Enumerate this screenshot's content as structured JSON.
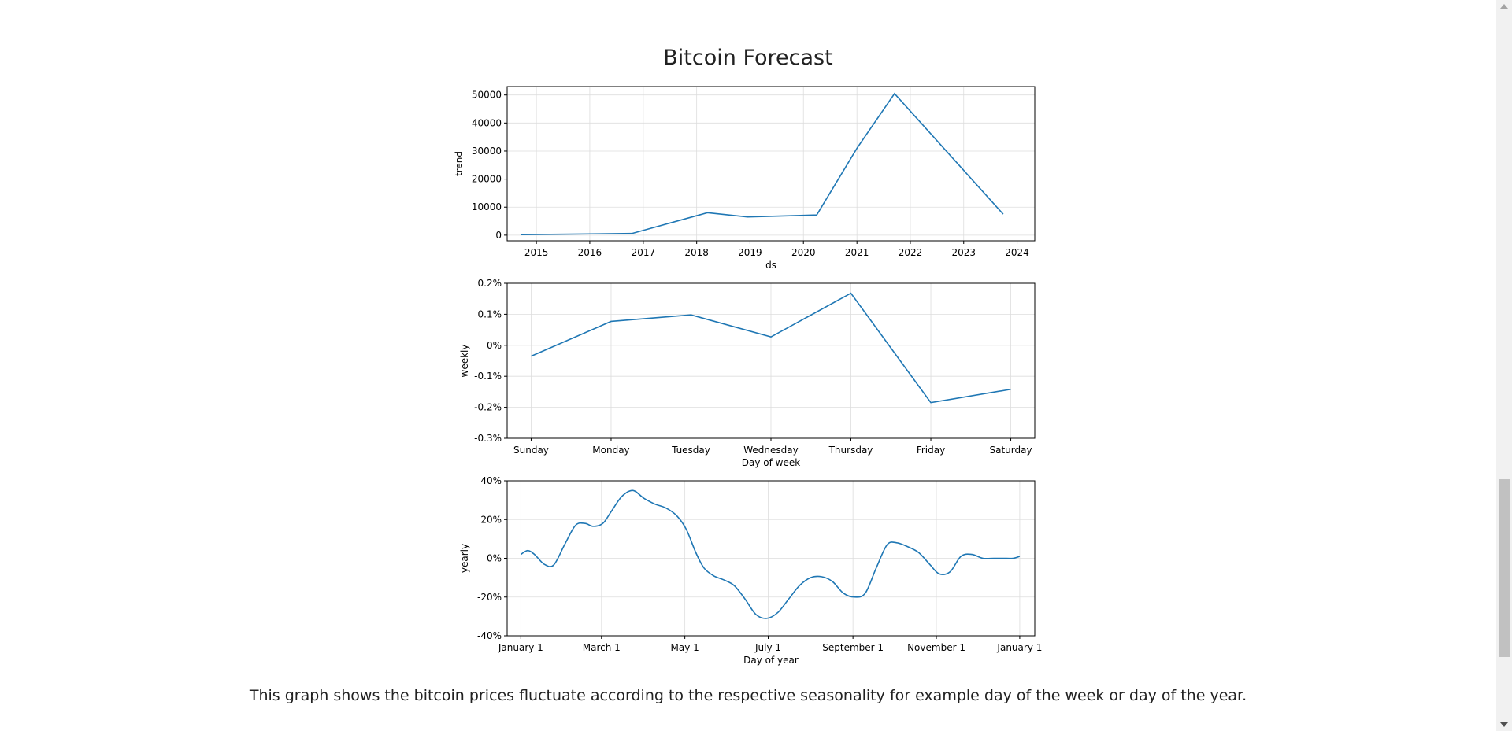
{
  "page": {
    "title": "Bitcoin Forecast",
    "caption": "This graph shows the bitcoin prices fluctuate according to the respective seasonality for example day of the week or day of the year."
  },
  "colors": {
    "line": "#1f77b4",
    "grid": "#dddddd",
    "text": "#212121"
  },
  "chart_data": [
    {
      "type": "line",
      "name": "trend-panel",
      "xlabel": "ds",
      "ylabel": "trend",
      "x_type": "date",
      "xlim": [
        "2014-06-15",
        "2024-05-01"
      ],
      "ylim": [
        -2000,
        53000
      ],
      "xticks": [
        {
          "x": "2015-01-01",
          "label": "2015"
        },
        {
          "x": "2016-01-01",
          "label": "2016"
        },
        {
          "x": "2017-01-01",
          "label": "2017"
        },
        {
          "x": "2018-01-01",
          "label": "2018"
        },
        {
          "x": "2019-01-01",
          "label": "2019"
        },
        {
          "x": "2020-01-01",
          "label": "2020"
        },
        {
          "x": "2021-01-01",
          "label": "2021"
        },
        {
          "x": "2022-01-01",
          "label": "2022"
        },
        {
          "x": "2023-01-01",
          "label": "2023"
        },
        {
          "x": "2024-01-01",
          "label": "2024"
        }
      ],
      "yticks": [
        {
          "y": 0,
          "label": "0"
        },
        {
          "y": 10000,
          "label": "10000"
        },
        {
          "y": 20000,
          "label": "20000"
        },
        {
          "y": 30000,
          "label": "30000"
        },
        {
          "y": 40000,
          "label": "40000"
        },
        {
          "y": 50000,
          "label": "50000"
        }
      ],
      "grid": true,
      "x": [
        "2014-09-17",
        "2016-10-15",
        "2018-03-15",
        "2018-12-15",
        "2020-04-01",
        "2021-01-01",
        "2021-09-15",
        "2023-09-28"
      ],
      "y": [
        200,
        600,
        8000,
        6500,
        7200,
        31000,
        50500,
        7500
      ]
    },
    {
      "type": "line",
      "name": "weekly-panel",
      "xlabel": "Day of week",
      "ylabel": "weekly",
      "ylim": [
        -0.3,
        0.2
      ],
      "categories": [
        "Sunday",
        "Monday",
        "Tuesday",
        "Wednesday",
        "Thursday",
        "Friday",
        "Saturday"
      ],
      "yticks": [
        {
          "y": 0.2,
          "label": "0.2%"
        },
        {
          "y": 0.1,
          "label": "0.1%"
        },
        {
          "y": 0,
          "label": "0%"
        },
        {
          "y": -0.1,
          "label": "-0.1%"
        },
        {
          "y": -0.2,
          "label": "-0.2%"
        },
        {
          "y": -0.3,
          "label": "-0.3%"
        }
      ],
      "grid": true,
      "values": [
        -0.035,
        0.077,
        0.098,
        0.027,
        0.168,
        -0.185,
        -0.142
      ]
    },
    {
      "type": "line",
      "name": "yearly-panel",
      "xlabel": "Day of year",
      "ylabel": "yearly",
      "xlim": [
        -10,
        376
      ],
      "ylim": [
        -40,
        40
      ],
      "xticks": [
        {
          "x": 0,
          "label": "January 1"
        },
        {
          "x": 59,
          "label": "March 1"
        },
        {
          "x": 120,
          "label": "May 1"
        },
        {
          "x": 181,
          "label": "July 1"
        },
        {
          "x": 243,
          "label": "September 1"
        },
        {
          "x": 304,
          "label": "November 1"
        },
        {
          "x": 365,
          "label": "January 1"
        }
      ],
      "yticks": [
        {
          "y": 40,
          "label": "40%"
        },
        {
          "y": 20,
          "label": "20%"
        },
        {
          "y": 0,
          "label": "0%"
        },
        {
          "y": -20,
          "label": "-20%"
        },
        {
          "y": -40,
          "label": "-40%"
        }
      ],
      "grid": true,
      "x": [
        0,
        5,
        10,
        17,
        24,
        32,
        40,
        47,
        53,
        60,
        66,
        74,
        82,
        90,
        98,
        106,
        114,
        121,
        128,
        134,
        141,
        148,
        156,
        164,
        172,
        180,
        188,
        196,
        204,
        212,
        220,
        228,
        236,
        244,
        252,
        260,
        268,
        275,
        283,
        291,
        299,
        306,
        314,
        322,
        330,
        338,
        346,
        353,
        360,
        365
      ],
      "y": [
        2,
        4,
        2,
        -3,
        -3.5,
        7,
        17,
        18,
        16.5,
        18,
        24,
        32,
        35,
        31,
        28,
        26,
        22,
        15,
        3,
        -5,
        -9,
        -11,
        -14,
        -21,
        -29,
        -31,
        -28,
        -21,
        -14,
        -10,
        -9.5,
        -12,
        -18,
        -20,
        -18,
        -5,
        7,
        8,
        6,
        3,
        -3,
        -8,
        -7,
        1,
        2,
        0,
        0,
        0,
        0,
        1
      ]
    }
  ]
}
